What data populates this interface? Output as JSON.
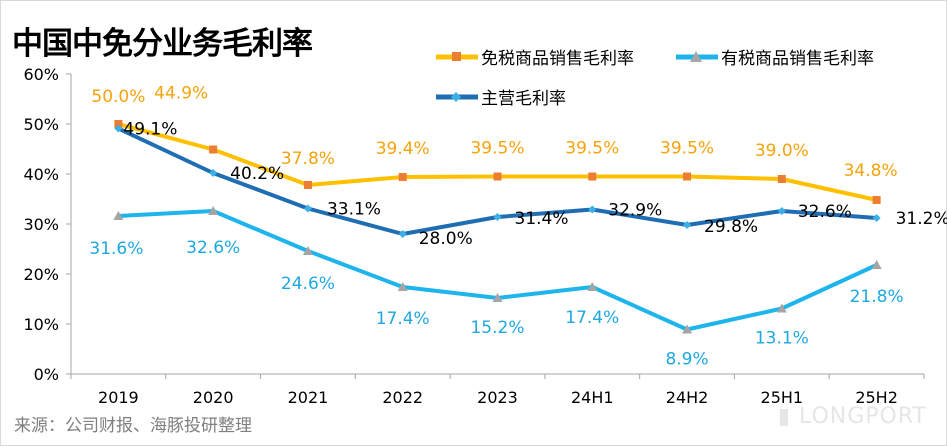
{
  "title": "中国中免分业务毛利率",
  "source": "来源：公司财报、海豚投研整理",
  "watermark": "LONGPORT",
  "chart_data": {
    "type": "line",
    "title": "中国中免分业务毛利率",
    "categories": [
      "2019",
      "2020",
      "2021",
      "2022",
      "2023",
      "24H1",
      "24H2",
      "25H1",
      "25H2"
    ],
    "ylim": [
      0,
      60
    ],
    "yticks": [
      "0%",
      "10%",
      "20%",
      "30%",
      "40%",
      "50%",
      "60%"
    ],
    "grid": false,
    "legend_placement": "top-right",
    "series": [
      {
        "name": "免税商品销售毛利率",
        "values": [
          50.0,
          44.9,
          37.8,
          39.4,
          39.5,
          39.5,
          39.5,
          39.0,
          34.8
        ],
        "labels": [
          "50.0%",
          "44.9%",
          "37.8%",
          "39.4%",
          "39.5%",
          "39.5%",
          "39.5%",
          "39.0%",
          "34.8%"
        ],
        "line_color": "#FFC000",
        "marker_color": "#ED7D31",
        "label_color": "#F5A30A",
        "marker": "square"
      },
      {
        "name": "有税商品销售毛利率",
        "values": [
          31.6,
          32.6,
          24.6,
          17.4,
          15.2,
          17.4,
          8.9,
          13.1,
          21.8
        ],
        "labels": [
          "31.6%",
          "32.6%",
          "24.6%",
          "17.4%",
          "15.2%",
          "17.4%",
          "8.9%",
          "13.1%",
          "21.8%"
        ],
        "line_color": "#1EB4EC",
        "marker_color": "#A5A5A5",
        "label_color": "#1EA8E0",
        "marker": "triangle"
      },
      {
        "name": "主营毛利率",
        "values": [
          49.1,
          40.2,
          33.1,
          28.0,
          31.4,
          32.9,
          29.8,
          32.6,
          31.2
        ],
        "labels": [
          "49.1%",
          "40.2%",
          "33.1%",
          "28.0%",
          "31.4%",
          "32.9%",
          "29.8%",
          "32.6%",
          "31.2%"
        ],
        "line_color": "#1F6DB3",
        "marker_color": "#3AB0E8",
        "label_color": "#000000",
        "marker": "diamond"
      }
    ]
  }
}
